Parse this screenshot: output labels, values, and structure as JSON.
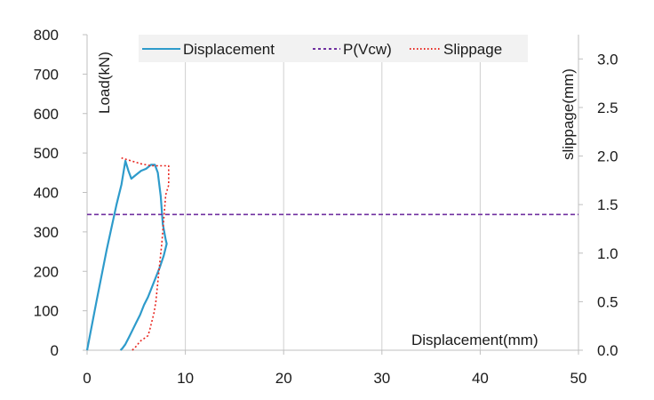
{
  "chart_data": {
    "type": "line",
    "title": "",
    "xlabel": "Displacement(mm)",
    "ylabel": "Load(kN)",
    "y2label": "slippage(mm)",
    "xlim": [
      0,
      50
    ],
    "ylim": [
      0,
      800
    ],
    "y2lim": [
      0,
      3.25
    ],
    "x_ticks": [
      "0",
      "10",
      "20",
      "30",
      "40",
      "50"
    ],
    "y_ticks": [
      "0",
      "100",
      "200",
      "300",
      "400",
      "500",
      "600",
      "700",
      "800"
    ],
    "y2_ticks": [
      "0.0",
      "0.5",
      "1.0",
      "1.5",
      "2.0",
      "2.5",
      "3.0"
    ],
    "grid": "vertical",
    "legend_position": "top-center",
    "colors": {
      "displacement": "#2E9BCB",
      "pvcw": "#7030A0",
      "slippage": "#E8261F"
    },
    "series": [
      {
        "name": "Displacement",
        "axis": "left",
        "style": "solid",
        "x": [
          0,
          1.0,
          2.0,
          3.0,
          3.5,
          3.9,
          4.2,
          4.5,
          5.0,
          5.5,
          6.0,
          6.5,
          6.9,
          7.2,
          7.5,
          7.7,
          8.0,
          8.1,
          7.8,
          7.4,
          7.0,
          6.6,
          6.2,
          5.8,
          5.4,
          5.0,
          4.6,
          4.3,
          3.9,
          3.6,
          3.4
        ],
        "y": [
          0,
          130,
          255,
          370,
          420,
          480,
          455,
          435,
          445,
          455,
          460,
          470,
          470,
          450,
          390,
          320,
          280,
          270,
          240,
          210,
          185,
          160,
          135,
          115,
          90,
          70,
          50,
          35,
          15,
          5,
          0
        ]
      },
      {
        "name": "P(Vcw)",
        "axis": "left",
        "style": "dashed",
        "x": [
          0,
          50
        ],
        "y": [
          344,
          344
        ]
      },
      {
        "name": "Slippage",
        "axis": "right",
        "style": "dotted",
        "x": [
          4.6,
          5.0,
          5.3,
          5.5,
          5.8,
          6.2,
          6.4,
          6.6,
          6.8,
          7.0,
          7.3,
          7.6,
          7.8,
          8.0,
          8.3,
          8.3,
          6.5,
          5.5,
          4.5,
          3.5
        ],
        "y": [
          0.0,
          0.04,
          0.08,
          0.1,
          0.12,
          0.15,
          0.22,
          0.3,
          0.38,
          0.5,
          0.8,
          1.1,
          1.35,
          1.6,
          1.7,
          1.9,
          1.9,
          1.92,
          1.95,
          1.98
        ]
      }
    ]
  }
}
